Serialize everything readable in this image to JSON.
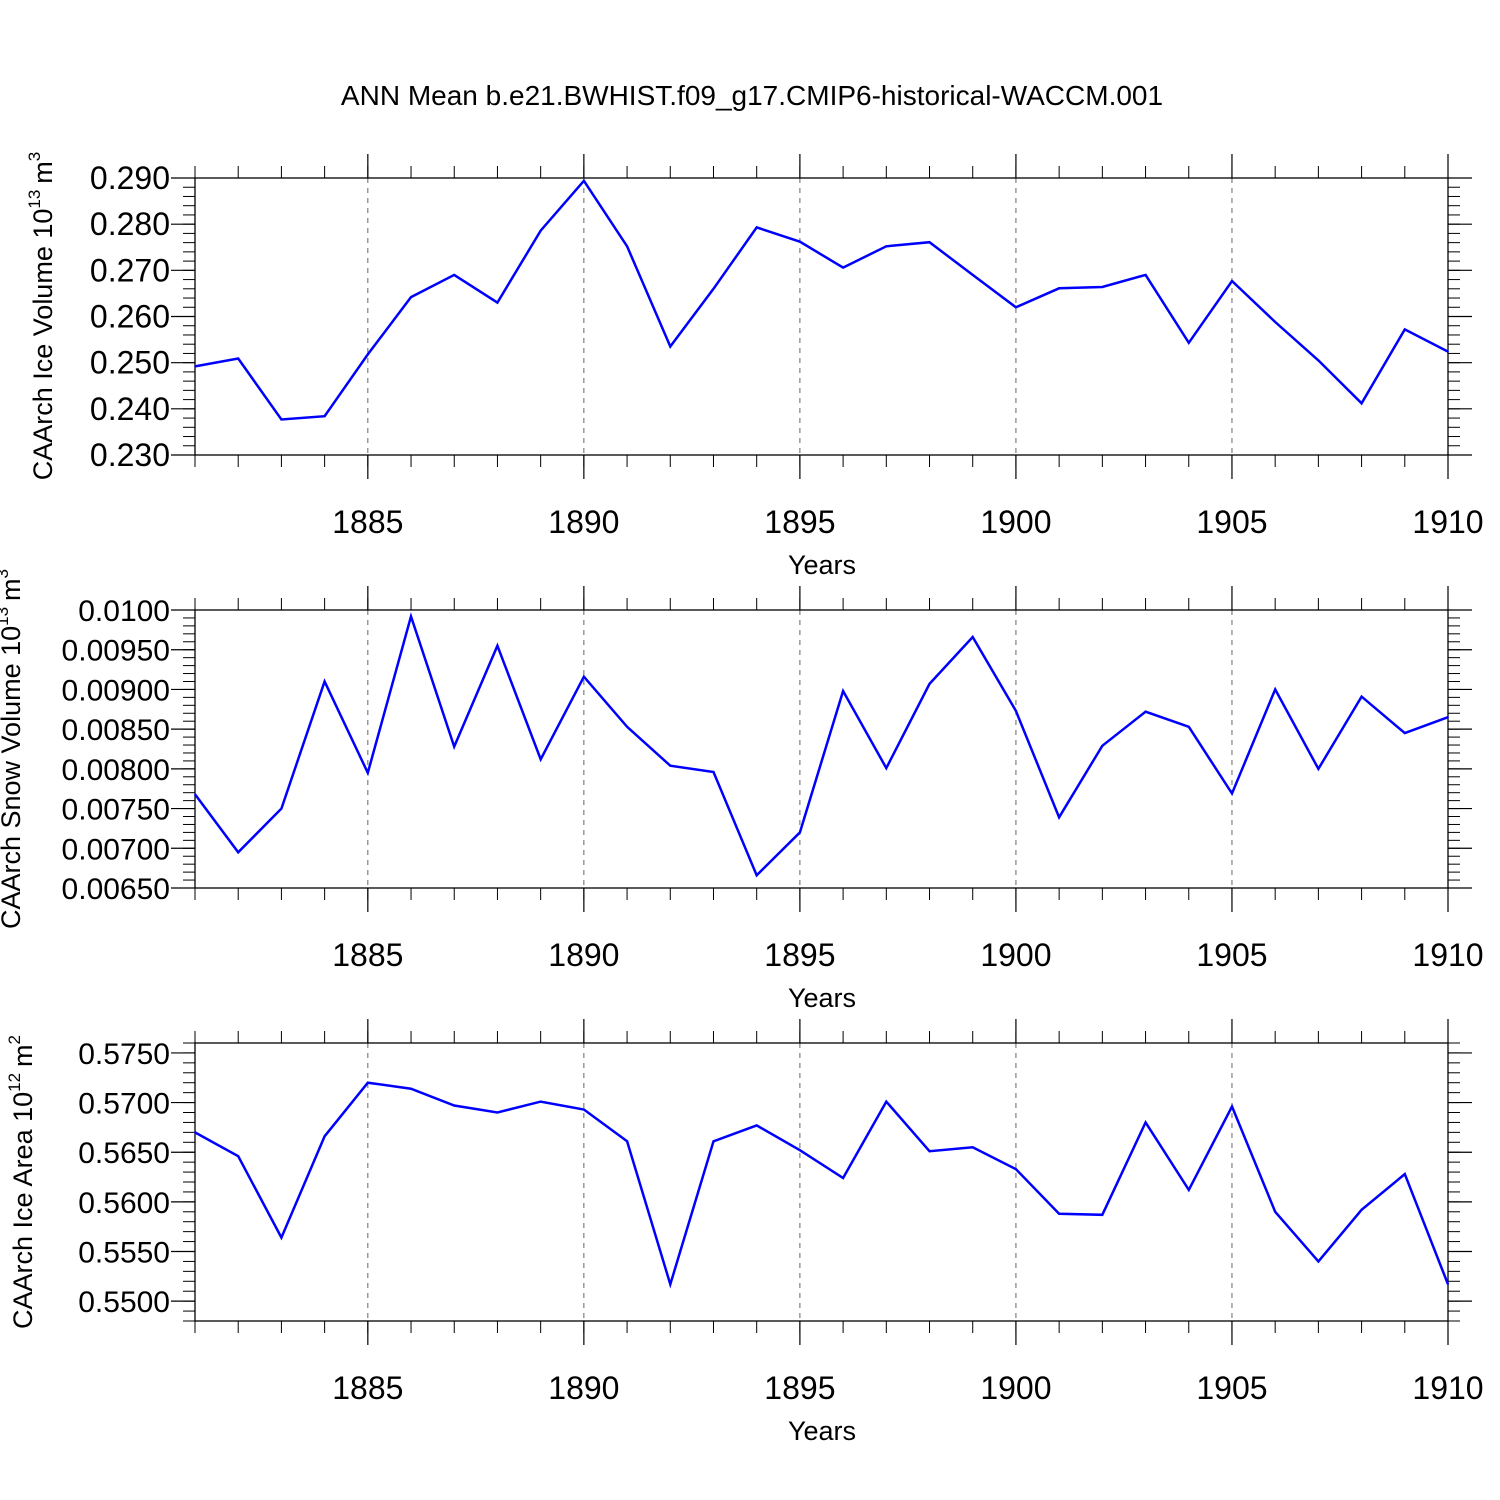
{
  "figure": {
    "title": "ANN Mean b.e21.BWHIST.f09_g17.CMIP6-historical-WACCM.001"
  },
  "colors": {
    "series_line": "#0000ff",
    "axis": "#000000",
    "grid": "#666666",
    "background": "#ffffff"
  },
  "chart_data": [
    {
      "type": "line",
      "ylabel": "CAArch Ice Volume 10",
      "ylabel_exponent": "13",
      "ylabel_unit": "m",
      "ylabel_unit_exponent": "3",
      "xlabel": "Years",
      "xlim": [
        1881,
        1910
      ],
      "ylim": [
        0.23,
        0.29
      ],
      "xticks": [
        1885,
        1890,
        1895,
        1900,
        1905,
        1910
      ],
      "xtick_labels": [
        "1885",
        "1890",
        "1895",
        "1900",
        "1905",
        "1910"
      ],
      "yticks": [
        0.23,
        0.24,
        0.25,
        0.26,
        0.27,
        0.28,
        0.29
      ],
      "ytick_labels": [
        "0.230",
        "0.240",
        "0.250",
        "0.260",
        "0.270",
        "0.280",
        "0.290"
      ],
      "grid": "vertical dashed at major x ticks",
      "x": [
        1881,
        1882,
        1883,
        1884,
        1885,
        1886,
        1887,
        1888,
        1889,
        1890,
        1891,
        1892,
        1893,
        1894,
        1895,
        1896,
        1897,
        1898,
        1899,
        1900,
        1901,
        1902,
        1903,
        1904,
        1905,
        1906,
        1907,
        1908,
        1909,
        1910
      ],
      "values": [
        0.2492,
        0.2509,
        0.2377,
        0.2384,
        0.2518,
        0.2642,
        0.269,
        0.263,
        0.2786,
        0.2894,
        0.2752,
        0.2535,
        0.266,
        0.2793,
        0.2762,
        0.2706,
        0.2752,
        0.2761,
        0.269,
        0.262,
        0.2661,
        0.2664,
        0.269,
        0.2543,
        0.2677,
        0.2588,
        0.2505,
        0.2412,
        0.2572,
        0.2524
      ]
    },
    {
      "type": "line",
      "ylabel": "CAArch Snow Volume 10",
      "ylabel_exponent": "13",
      "ylabel_unit": "m",
      "ylabel_unit_exponent": "3",
      "xlabel": "Years",
      "xlim": [
        1881,
        1910
      ],
      "ylim": [
        0.0065,
        0.01
      ],
      "xticks": [
        1885,
        1890,
        1895,
        1900,
        1905,
        1910
      ],
      "xtick_labels": [
        "1885",
        "1890",
        "1895",
        "1900",
        "1905",
        "1910"
      ],
      "yticks": [
        0.0065,
        0.007,
        0.0075,
        0.008,
        0.0085,
        0.009,
        0.0095,
        0.01
      ],
      "ytick_labels": [
        "0.00650",
        "0.00700",
        "0.00750",
        "0.00800",
        "0.00850",
        "0.00900",
        "0.00950",
        "0.0100"
      ],
      "grid": "vertical dashed at major x ticks",
      "x": [
        1881,
        1882,
        1883,
        1884,
        1885,
        1886,
        1887,
        1888,
        1889,
        1890,
        1891,
        1892,
        1893,
        1894,
        1895,
        1896,
        1897,
        1898,
        1899,
        1900,
        1901,
        1902,
        1903,
        1904,
        1905,
        1906,
        1907,
        1908,
        1909,
        1910
      ],
      "values": [
        0.00768,
        0.00695,
        0.0075,
        0.0091,
        0.00795,
        0.00992,
        0.00828,
        0.00955,
        0.00812,
        0.00916,
        0.00853,
        0.00804,
        0.00796,
        0.00666,
        0.0072,
        0.00898,
        0.00801,
        0.00907,
        0.00966,
        0.00873,
        0.00739,
        0.00829,
        0.00872,
        0.00853,
        0.00769,
        0.009,
        0.008,
        0.00891,
        0.00845,
        0.00865
      ]
    },
    {
      "type": "line",
      "ylabel": "CAArch Ice Area 10",
      "ylabel_exponent": "12",
      "ylabel_unit": "m",
      "ylabel_unit_exponent": "2",
      "xlabel": "Years",
      "xlim": [
        1881,
        1910
      ],
      "ylim": [
        0.548,
        0.576
      ],
      "xticks": [
        1885,
        1890,
        1895,
        1900,
        1905,
        1910
      ],
      "xtick_labels": [
        "1885",
        "1890",
        "1895",
        "1900",
        "1905",
        "1910"
      ],
      "yticks": [
        0.55,
        0.555,
        0.56,
        0.565,
        0.57,
        0.575
      ],
      "ytick_labels": [
        "0.5500",
        "0.5550",
        "0.5600",
        "0.5650",
        "0.5700",
        "0.5750"
      ],
      "grid": "vertical dashed at major x ticks",
      "x": [
        1881,
        1882,
        1883,
        1884,
        1885,
        1886,
        1887,
        1888,
        1889,
        1890,
        1891,
        1892,
        1893,
        1894,
        1895,
        1896,
        1897,
        1898,
        1899,
        1900,
        1901,
        1902,
        1903,
        1904,
        1905,
        1906,
        1907,
        1908,
        1909,
        1910
      ],
      "values": [
        0.567,
        0.5646,
        0.5564,
        0.5666,
        0.572,
        0.5714,
        0.5697,
        0.569,
        0.5701,
        0.5693,
        0.5661,
        0.5517,
        0.5661,
        0.5677,
        0.5652,
        0.5624,
        0.5701,
        0.5651,
        0.5655,
        0.5633,
        0.5588,
        0.5587,
        0.568,
        0.5612,
        0.5696,
        0.559,
        0.554,
        0.5592,
        0.5628,
        0.5517
      ]
    }
  ]
}
